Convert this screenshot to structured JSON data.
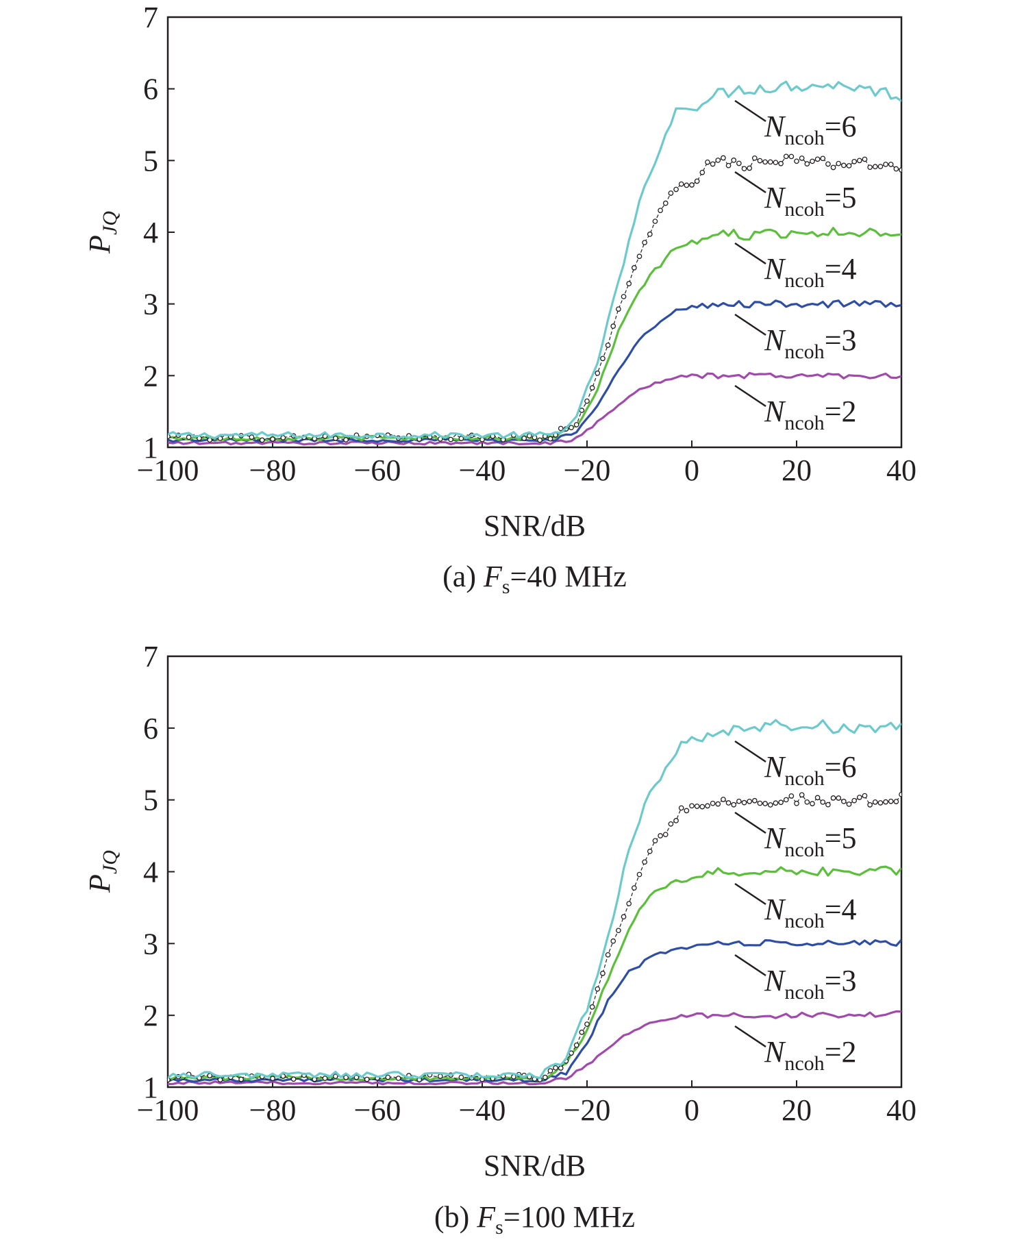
{
  "chart_data": [
    {
      "type": "line",
      "caption_prefix": "(a) ",
      "caption_var": "F",
      "caption_sub": "s",
      "caption_rest": "=40 MHz",
      "xlabel": "SNR/dB",
      "ylabel_main": "P",
      "ylabel_sub": "JQ",
      "xlim": [
        -100,
        40
      ],
      "ylim": [
        1,
        7
      ],
      "xticks": [
        -100,
        -80,
        -60,
        -40,
        -20,
        0,
        20,
        40
      ],
      "xtick_labels": [
        "−100",
        "−80",
        "−60",
        "−40",
        "−20",
        "0",
        "20",
        "40"
      ],
      "yticks": [
        1,
        2,
        3,
        4,
        5,
        6,
        7
      ],
      "ytick_labels": [
        "1",
        "2",
        "3",
        "4",
        "5",
        "6",
        "7"
      ],
      "rise_start": -26,
      "series": [
        {
          "name": "N_ncoh=6",
          "var": "N",
          "sub": "ncoh",
          "rest": "=6",
          "color": "#6cc9cc",
          "style": "solid",
          "plateau": 6.0,
          "baseline": 1.17,
          "noise": 0.11,
          "points": [
            [
              -26,
              1.2
            ],
            [
              -22,
              1.4
            ],
            [
              -18,
              2.2
            ],
            [
              -14,
              3.3
            ],
            [
              -10,
              4.4
            ],
            [
              -6,
              5.2
            ],
            [
              -3,
              5.7
            ],
            [
              0,
              5.75
            ],
            [
              3,
              5.85
            ],
            [
              6,
              5.95
            ],
            [
              10,
              6.0
            ],
            [
              20,
              6.05
            ],
            [
              30,
              6.05
            ],
            [
              40,
              5.9
            ]
          ]
        },
        {
          "name": "N_ncoh=5",
          "var": "N",
          "sub": "ncoh",
          "rest": "=5",
          "color": "#231f20",
          "style": "dotted-circle",
          "plateau": 5.0,
          "baseline": 1.14,
          "noise": 0.1,
          "points": [
            [
              -26,
              1.18
            ],
            [
              -22,
              1.35
            ],
            [
              -18,
              2.0
            ],
            [
              -14,
              2.9
            ],
            [
              -10,
              3.7
            ],
            [
              -6,
              4.3
            ],
            [
              -3,
              4.6
            ],
            [
              0,
              4.7
            ],
            [
              3,
              4.9
            ],
            [
              6,
              5.0
            ],
            [
              10,
              4.95
            ],
            [
              20,
              5.0
            ],
            [
              30,
              4.95
            ],
            [
              40,
              4.92
            ]
          ]
        },
        {
          "name": "N_ncoh=4",
          "var": "N",
          "sub": "ncoh",
          "rest": "=4",
          "color": "#5cbf3c",
          "style": "solid",
          "plateau": 4.0,
          "baseline": 1.13,
          "noise": 0.08,
          "points": [
            [
              -26,
              1.15
            ],
            [
              -22,
              1.3
            ],
            [
              -18,
              1.8
            ],
            [
              -14,
              2.6
            ],
            [
              -10,
              3.2
            ],
            [
              -6,
              3.55
            ],
            [
              -3,
              3.8
            ],
            [
              0,
              3.85
            ],
            [
              3,
              3.9
            ],
            [
              6,
              4.0
            ],
            [
              10,
              3.95
            ],
            [
              20,
              4.0
            ],
            [
              30,
              4.0
            ],
            [
              40,
              4.0
            ]
          ]
        },
        {
          "name": "N_ncoh=3",
          "var": "N",
          "sub": "ncoh",
          "rest": "=3",
          "color": "#2d4ea3",
          "style": "solid",
          "plateau": 3.0,
          "baseline": 1.1,
          "noise": 0.06,
          "points": [
            [
              -26,
              1.12
            ],
            [
              -22,
              1.2
            ],
            [
              -18,
              1.6
            ],
            [
              -14,
              2.1
            ],
            [
              -10,
              2.5
            ],
            [
              -6,
              2.75
            ],
            [
              -3,
              2.9
            ],
            [
              0,
              2.95
            ],
            [
              3,
              2.97
            ],
            [
              6,
              3.0
            ],
            [
              10,
              3.0
            ],
            [
              20,
              3.0
            ],
            [
              30,
              3.0
            ],
            [
              40,
              3.0
            ]
          ]
        },
        {
          "name": "N_ncoh=2",
          "var": "N",
          "sub": "ncoh",
          "rest": "=2",
          "color": "#a04aab",
          "style": "solid",
          "plateau": 2.0,
          "baseline": 1.06,
          "noise": 0.05,
          "points": [
            [
              -26,
              1.07
            ],
            [
              -22,
              1.12
            ],
            [
              -18,
              1.35
            ],
            [
              -14,
              1.6
            ],
            [
              -10,
              1.8
            ],
            [
              -6,
              1.92
            ],
            [
              -3,
              1.97
            ],
            [
              0,
              2.0
            ],
            [
              3,
              2.0
            ],
            [
              6,
              2.0
            ],
            [
              10,
              2.0
            ],
            [
              20,
              2.0
            ],
            [
              30,
              2.0
            ],
            [
              40,
              2.0
            ]
          ]
        }
      ]
    },
    {
      "type": "line",
      "caption_prefix": "(b) ",
      "caption_var": "F",
      "caption_sub": "s",
      "caption_rest": "=100 MHz",
      "xlabel": "SNR/dB",
      "ylabel_main": "P",
      "ylabel_sub": "JQ",
      "xlim": [
        -100,
        40
      ],
      "ylim": [
        1,
        7
      ],
      "xticks": [
        -100,
        -80,
        -60,
        -40,
        -20,
        0,
        20,
        40
      ],
      "xtick_labels": [
        "−100",
        "−80",
        "−60",
        "−40",
        "−20",
        "0",
        "20",
        "40"
      ],
      "yticks": [
        1,
        2,
        3,
        4,
        5,
        6,
        7
      ],
      "ytick_labels": [
        "1",
        "2",
        "3",
        "4",
        "5",
        "6",
        "7"
      ],
      "rise_start": -28,
      "series": [
        {
          "name": "N_ncoh=6",
          "var": "N",
          "sub": "ncoh",
          "rest": "=6",
          "color": "#6cc9cc",
          "style": "solid",
          "plateau": 6.0,
          "baseline": 1.17,
          "noise": 0.11,
          "points": [
            [
              -28,
              1.2
            ],
            [
              -24,
              1.4
            ],
            [
              -20,
              2.1
            ],
            [
              -16,
              3.1
            ],
            [
              -12,
              4.3
            ],
            [
              -8,
              5.1
            ],
            [
              -4,
              5.5
            ],
            [
              -2,
              5.8
            ],
            [
              2,
              5.9
            ],
            [
              6,
              5.95
            ],
            [
              10,
              6.0
            ],
            [
              20,
              6.05
            ],
            [
              30,
              6.0
            ],
            [
              40,
              6.05
            ]
          ]
        },
        {
          "name": "N_ncoh=5",
          "var": "N",
          "sub": "ncoh",
          "rest": "=5",
          "color": "#231f20",
          "style": "dotted-circle",
          "plateau": 5.0,
          "baseline": 1.14,
          "noise": 0.1,
          "points": [
            [
              -28,
              1.18
            ],
            [
              -24,
              1.35
            ],
            [
              -20,
              1.9
            ],
            [
              -16,
              2.8
            ],
            [
              -12,
              3.6
            ],
            [
              -8,
              4.3
            ],
            [
              -4,
              4.65
            ],
            [
              -2,
              4.85
            ],
            [
              2,
              4.95
            ],
            [
              6,
              5.0
            ],
            [
              10,
              5.0
            ],
            [
              20,
              5.0
            ],
            [
              30,
              4.95
            ],
            [
              40,
              5.05
            ]
          ]
        },
        {
          "name": "N_ncoh=4",
          "var": "N",
          "sub": "ncoh",
          "rest": "=4",
          "color": "#5cbf3c",
          "style": "solid",
          "plateau": 4.0,
          "baseline": 1.13,
          "noise": 0.08,
          "points": [
            [
              -28,
              1.15
            ],
            [
              -24,
              1.3
            ],
            [
              -20,
              1.8
            ],
            [
              -16,
              2.5
            ],
            [
              -12,
              3.2
            ],
            [
              -8,
              3.7
            ],
            [
              -4,
              3.85
            ],
            [
              0,
              3.9
            ],
            [
              4,
              3.98
            ],
            [
              8,
              4.0
            ],
            [
              12,
              4.0
            ],
            [
              20,
              4.0
            ],
            [
              30,
              4.0
            ],
            [
              40,
              4.02
            ]
          ]
        },
        {
          "name": "N_ncoh=3",
          "var": "N",
          "sub": "ncoh",
          "rest": "=3",
          "color": "#2d4ea3",
          "style": "solid",
          "plateau": 3.0,
          "baseline": 1.1,
          "noise": 0.06,
          "points": [
            [
              -28,
              1.12
            ],
            [
              -24,
              1.2
            ],
            [
              -20,
              1.6
            ],
            [
              -16,
              2.2
            ],
            [
              -12,
              2.6
            ],
            [
              -8,
              2.8
            ],
            [
              -4,
              2.92
            ],
            [
              0,
              2.95
            ],
            [
              4,
              3.0
            ],
            [
              10,
              3.0
            ],
            [
              20,
              3.0
            ],
            [
              30,
              3.0
            ],
            [
              40,
              3.02
            ]
          ]
        },
        {
          "name": "N_ncoh=2",
          "var": "N",
          "sub": "ncoh",
          "rest": "=2",
          "color": "#a04aab",
          "style": "solid",
          "plateau": 2.0,
          "baseline": 1.06,
          "noise": 0.05,
          "points": [
            [
              -28,
              1.07
            ],
            [
              -24,
              1.12
            ],
            [
              -20,
              1.3
            ],
            [
              -16,
              1.55
            ],
            [
              -12,
              1.75
            ],
            [
              -8,
              1.9
            ],
            [
              -4,
              1.97
            ],
            [
              0,
              2.0
            ],
            [
              10,
              2.0
            ],
            [
              20,
              2.0
            ],
            [
              30,
              2.0
            ],
            [
              40,
              2.02
            ]
          ]
        }
      ]
    }
  ]
}
